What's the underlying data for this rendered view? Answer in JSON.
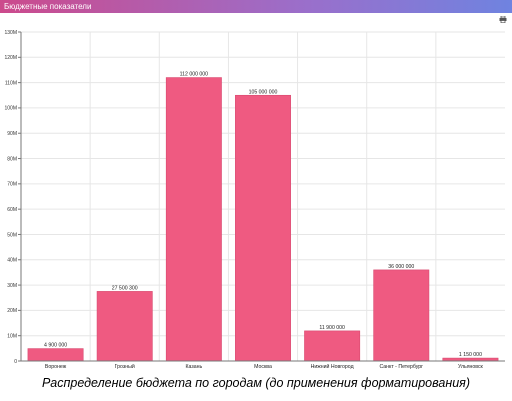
{
  "widget": {
    "title": "Бюджетные показатели",
    "print_icon": "printer-icon"
  },
  "caption": "Распределение бюджета по городам (до применения форматирования)",
  "colors": {
    "bar": "#ef5a81",
    "bar_stroke": "#d84a70",
    "grid": "#e6e6e6",
    "axis": "#777777"
  },
  "chart_data": {
    "type": "bar",
    "categories": [
      "Воронеж",
      "Грозный",
      "Казань",
      "Москва",
      "Нижний Новгород",
      "Санкт - Петербург",
      "Ульяновск"
    ],
    "values": [
      4900000,
      27500300,
      112000000,
      105000000,
      11900000,
      36000000,
      1150000
    ],
    "data_labels": [
      "4 900 000",
      "27 500 300",
      "112 000 000",
      "105 000 000",
      "11 900 000",
      "36 000 000",
      "1 150 000"
    ],
    "y_ticks": [
      0,
      10000000,
      20000000,
      30000000,
      40000000,
      50000000,
      60000000,
      70000000,
      80000000,
      90000000,
      100000000,
      110000000,
      120000000,
      130000000
    ],
    "y_tick_labels": [
      "0",
      "10M",
      "20M",
      "30M",
      "40M",
      "50M",
      "60M",
      "70M",
      "80M",
      "90M",
      "100M",
      "110M",
      "120M",
      "130M"
    ],
    "ylim": [
      0,
      130000000
    ],
    "grid": true,
    "legend": "none"
  }
}
